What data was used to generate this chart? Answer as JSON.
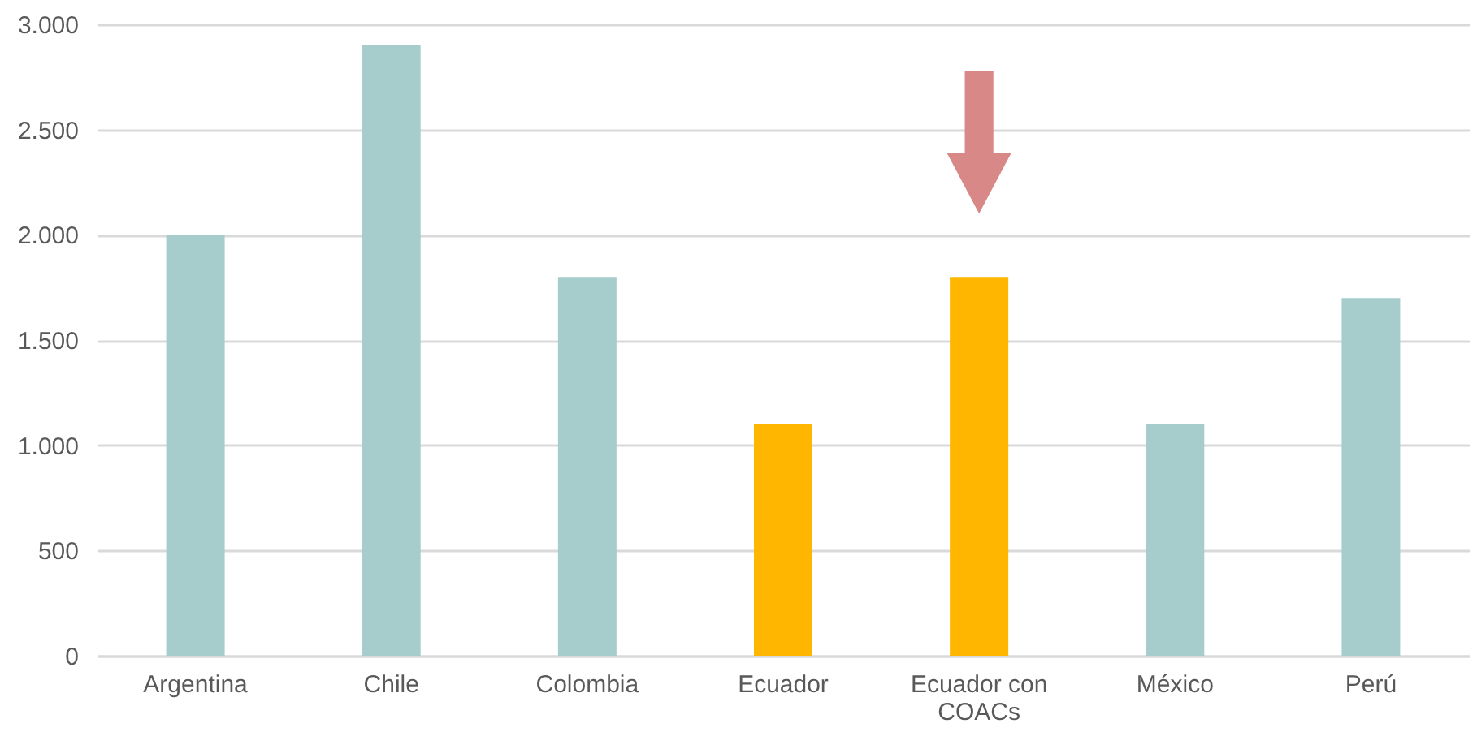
{
  "chart_data": {
    "type": "bar",
    "categories": [
      "Argentina",
      "Chile",
      "Colombia",
      "Ecuador",
      "Ecuador con COACs",
      "México",
      "Perú"
    ],
    "values": [
      2000,
      2900,
      1800,
      1100,
      1800,
      1100,
      1700
    ],
    "colors": [
      "#a6cdcc",
      "#a6cdcc",
      "#a6cdcc",
      "#ffb600",
      "#ffb600",
      "#a6cdcc",
      "#a6cdcc"
    ],
    "ylim": [
      0,
      3000
    ],
    "yticks": [
      {
        "value": 0,
        "label": "0"
      },
      {
        "value": 500,
        "label": "500"
      },
      {
        "value": 1000,
        "label": "1.000"
      },
      {
        "value": 1500,
        "label": "1.500"
      },
      {
        "value": 2000,
        "label": "2.000"
      },
      {
        "value": 2500,
        "label": "2.500"
      },
      {
        "value": 3000,
        "label": "3.000"
      }
    ],
    "grid": "y"
  }
}
